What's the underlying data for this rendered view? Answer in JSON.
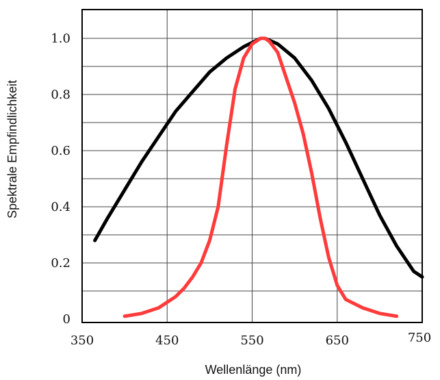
{
  "chart_data": {
    "type": "line",
    "title": "",
    "xlabel": "Wellenlänge (nm)",
    "ylabel": "Spektrale Empfindlichkeit",
    "xlim": [
      350,
      750
    ],
    "ylim": [
      0,
      1.1
    ],
    "x_ticks": [
      350,
      450,
      550,
      650,
      750
    ],
    "x_tick_labels": [
      "350",
      "450",
      "550",
      "650",
      "750"
    ],
    "y_ticks": [
      0,
      0.2,
      0.4,
      0.6,
      0.8,
      1.0
    ],
    "y_tick_labels": [
      "0",
      "0.2",
      "0.4",
      "0.6",
      "0.8",
      "1.0"
    ],
    "x_gridlines": [
      450,
      550,
      650
    ],
    "y_gridlines": [
      0.1,
      0.2,
      0.3,
      0.4,
      0.5,
      0.6,
      0.7,
      0.8,
      0.9,
      1.0
    ],
    "grid": true,
    "series": [
      {
        "color": "#000000",
        "x": [
          365,
          380,
          400,
          420,
          440,
          460,
          480,
          500,
          520,
          540,
          560,
          565,
          580,
          600,
          620,
          640,
          660,
          680,
          700,
          720,
          740,
          750
        ],
        "y": [
          0.28,
          0.36,
          0.46,
          0.56,
          0.65,
          0.74,
          0.81,
          0.88,
          0.93,
          0.97,
          1.0,
          1.0,
          0.98,
          0.93,
          0.85,
          0.75,
          0.63,
          0.5,
          0.37,
          0.26,
          0.17,
          0.15
        ]
      },
      {
        "color": "#ff3b3b",
        "x": [
          400,
          420,
          440,
          460,
          470,
          480,
          490,
          500,
          510,
          520,
          530,
          540,
          550,
          560,
          565,
          570,
          580,
          590,
          600,
          610,
          620,
          630,
          640,
          650,
          660,
          680,
          700,
          720
        ],
        "y": [
          0.01,
          0.02,
          0.04,
          0.08,
          0.11,
          0.15,
          0.2,
          0.28,
          0.4,
          0.62,
          0.82,
          0.93,
          0.98,
          1.0,
          1.0,
          0.99,
          0.95,
          0.86,
          0.77,
          0.66,
          0.52,
          0.36,
          0.22,
          0.12,
          0.07,
          0.04,
          0.02,
          0.01
        ]
      }
    ]
  }
}
